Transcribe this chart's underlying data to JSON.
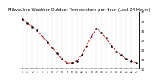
{
  "title": "Milwaukee Weather Outdoor Temperature per Hour (Last 24 Hours)",
  "temperatures": [
    36,
    34,
    32,
    30,
    27,
    24,
    21,
    18,
    15,
    13,
    13,
    14,
    17,
    22,
    27,
    31,
    29,
    26,
    22,
    19,
    17,
    15,
    14,
    13
  ],
  "hours": [
    0,
    1,
    2,
    3,
    4,
    5,
    6,
    7,
    8,
    9,
    10,
    11,
    12,
    13,
    14,
    15,
    16,
    17,
    18,
    19,
    20,
    21,
    22,
    23
  ],
  "line_color": "#cc0000",
  "marker_color": "#000000",
  "bg_color": "#ffffff",
  "grid_color": "#888888",
  "ylim": [
    10,
    40
  ],
  "yticks": [
    10,
    15,
    20,
    25,
    30,
    35,
    40
  ],
  "title_fontsize": 3.8,
  "axis_fontsize": 3.0,
  "marker_size": 1.5,
  "line_width": 0.6
}
